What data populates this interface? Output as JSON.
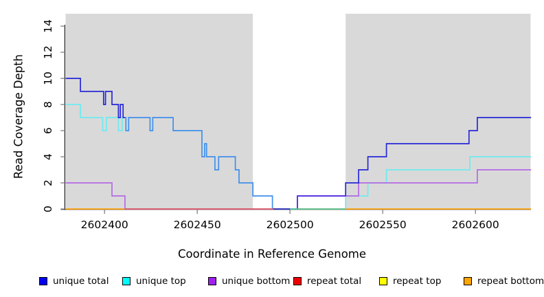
{
  "figure": {
    "title": "",
    "x_axis": {
      "label": "Coordinate in Reference Genome",
      "tick_values": [
        2602400,
        2602450,
        2602500,
        2602550,
        2602600
      ],
      "tick_labels": [
        "2602400",
        "2602450",
        "2602500",
        "2602550",
        "2602600"
      ]
    },
    "y_axis": {
      "label": "Read Coverage Depth",
      "tick_values": [
        0,
        2,
        4,
        6,
        8,
        10,
        12,
        14
      ],
      "tick_labels": [
        "0",
        "2",
        "4",
        "6",
        "8",
        "10",
        "12",
        "14"
      ]
    }
  },
  "legend": {
    "items": [
      {
        "key": "unique-total",
        "label": "unique total",
        "color": "#0000EE"
      },
      {
        "key": "unique-top",
        "label": "unique top",
        "color": "#00FFFF"
      },
      {
        "key": "unique-bottom",
        "label": "unique bottom",
        "color": "#A020F0"
      },
      {
        "key": "repeat-total",
        "label": "repeat total",
        "color": "#EE0000"
      },
      {
        "key": "repeat-top",
        "label": "repeat top",
        "color": "#FFFF00"
      },
      {
        "key": "repeat-bottom",
        "label": "repeat bottom",
        "color": "#FFA500"
      }
    ]
  },
  "chart_data": {
    "type": "line",
    "title": "",
    "xlabel": "Coordinate in Reference Genome",
    "ylabel": "Read Coverage Depth",
    "xlim": [
      2602379,
      2602630
    ],
    "ylim": [
      0,
      15
    ],
    "step_format": "each step is [genome_coordinate, depth]; depth holds until next breakpoint",
    "highlight_region": {
      "x0": 2602480,
      "x1": 2602530,
      "note": "white band over gray plot background"
    },
    "series": [
      {
        "name": "unique total",
        "end": 2602630,
        "steps": [
          [
            2602379,
            10
          ],
          [
            2602387,
            9
          ],
          [
            2602399.5,
            8
          ],
          [
            2602400.5,
            9
          ],
          [
            2602404,
            8
          ],
          [
            2602407.5,
            7
          ],
          [
            2602408.5,
            8
          ],
          [
            2602410,
            7
          ],
          [
            2602411.5,
            6
          ],
          [
            2602413,
            7
          ],
          [
            2602424.5,
            6
          ],
          [
            2602426,
            7
          ],
          [
            2602437,
            6
          ],
          [
            2602452.5,
            4
          ],
          [
            2602454,
            5
          ],
          [
            2602455,
            4
          ],
          [
            2602459.5,
            3
          ],
          [
            2602461.5,
            4
          ],
          [
            2602470.5,
            3
          ],
          [
            2602472.5,
            2
          ],
          [
            2602480,
            1
          ],
          [
            2602490.5,
            0
          ],
          [
            2602504,
            1
          ],
          [
            2602530,
            2
          ],
          [
            2602537,
            3
          ],
          [
            2602542,
            4
          ],
          [
            2602552,
            5
          ],
          [
            2602596.5,
            6
          ],
          [
            2602601,
            7
          ]
        ]
      },
      {
        "name": "unique top",
        "end": 2602630,
        "steps": [
          [
            2602379,
            8
          ],
          [
            2602387,
            7
          ],
          [
            2602399,
            6
          ],
          [
            2602401,
            7
          ],
          [
            2602407.5,
            6
          ],
          [
            2602409.5,
            7
          ],
          [
            2602411.5,
            6
          ],
          [
            2602413,
            7
          ],
          [
            2602424.5,
            6
          ],
          [
            2602426,
            7
          ],
          [
            2602437,
            6
          ],
          [
            2602452.5,
            4
          ],
          [
            2602454,
            5
          ],
          [
            2602455,
            4
          ],
          [
            2602459.5,
            3
          ],
          [
            2602461.5,
            4
          ],
          [
            2602470.5,
            3
          ],
          [
            2602472.5,
            2
          ],
          [
            2602480,
            1
          ],
          [
            2602490.5,
            0
          ],
          [
            2602530,
            1
          ],
          [
            2602542,
            2
          ],
          [
            2602552,
            3
          ],
          [
            2602597,
            4
          ]
        ]
      },
      {
        "name": "unique bottom",
        "end": 2602630,
        "steps": [
          [
            2602379,
            2
          ],
          [
            2602404,
            1
          ],
          [
            2602411,
            0
          ],
          [
            2602504,
            1
          ],
          [
            2602537,
            2
          ],
          [
            2602601,
            3
          ]
        ]
      },
      {
        "name": "repeat total",
        "end": 2602630,
        "steps": [
          [
            2602379,
            0
          ]
        ]
      },
      {
        "name": "repeat top",
        "end": 2602630,
        "steps": [
          [
            2602379,
            0
          ]
        ]
      },
      {
        "name": "repeat bottom",
        "end": 2602630,
        "steps": [
          [
            2602379,
            0
          ]
        ]
      }
    ]
  },
  "render": {
    "plot_bg": "#D9D9D9",
    "white_band": [
      2602480,
      2602530
    ],
    "axis_color": "#2B2B2B",
    "tick_color": "#808080",
    "segments": [
      {
        "name": "baseline-orange",
        "color": "#FFA008",
        "end": 2602630,
        "steps": [
          [
            2602379,
            0
          ]
        ]
      },
      {
        "name": "unique-top-left",
        "color": "#6FEAEE",
        "end": 2602411,
        "steps": [
          [
            2602379,
            8
          ],
          [
            2602387,
            7
          ],
          [
            2602399,
            6
          ],
          [
            2602401,
            7
          ],
          [
            2602407.5,
            6
          ],
          [
            2602409.5,
            7
          ]
        ]
      },
      {
        "name": "unique-top-right",
        "color": "#6FEAEE",
        "end": 2602630,
        "steps": [
          [
            2602530,
            0
          ],
          [
            2602530,
            1
          ],
          [
            2602542,
            2
          ],
          [
            2602552,
            3
          ],
          [
            2602597,
            4
          ]
        ]
      },
      {
        "name": "unique-bottom-left",
        "color": "#B469E4",
        "end": 2602411,
        "steps": [
          [
            2602379,
            2
          ],
          [
            2602404,
            1
          ],
          [
            2602411,
            0
          ]
        ]
      },
      {
        "name": "unique-bottom-right",
        "color": "#B469E4",
        "end": 2602630,
        "steps": [
          [
            2602504,
            0
          ],
          [
            2602504,
            1
          ],
          [
            2602537,
            2
          ],
          [
            2602601,
            3
          ]
        ]
      },
      {
        "name": "unique-total-dark-left",
        "color": "#2727D8",
        "end": 2602411,
        "steps": [
          [
            2602379,
            10
          ],
          [
            2602387,
            9
          ],
          [
            2602399.5,
            8
          ],
          [
            2602400.5,
            9
          ],
          [
            2602404,
            8
          ],
          [
            2602407.5,
            7
          ],
          [
            2602408.5,
            8
          ],
          [
            2602410,
            7
          ]
        ]
      },
      {
        "name": "unique-total-over-cyan",
        "color": "#3E8FEC",
        "end": 2602504,
        "steps": [
          [
            2602411,
            7
          ],
          [
            2602411.5,
            6
          ],
          [
            2602413,
            7
          ],
          [
            2602424.5,
            6
          ],
          [
            2602426,
            7
          ],
          [
            2602437,
            6
          ],
          [
            2602452.5,
            4
          ],
          [
            2602454,
            5
          ],
          [
            2602455,
            4
          ],
          [
            2602459.5,
            3
          ],
          [
            2602461.5,
            4
          ],
          [
            2602470.5,
            3
          ],
          [
            2602472.5,
            2
          ],
          [
            2602480,
            1
          ],
          [
            2602490.5,
            0
          ]
        ]
      },
      {
        "name": "unique-total-over-purple",
        "color": "#4C2BE2",
        "end": 2602530,
        "steps": [
          [
            2602504,
            0
          ],
          [
            2602504,
            1
          ]
        ]
      },
      {
        "name": "unique-total-dark-right",
        "color": "#2727D8",
        "end": 2602630,
        "steps": [
          [
            2602530,
            1
          ],
          [
            2602530,
            2
          ],
          [
            2602537,
            3
          ],
          [
            2602542,
            4
          ],
          [
            2602552,
            5
          ],
          [
            2602596.5,
            6
          ],
          [
            2602601,
            7
          ]
        ]
      },
      {
        "name": "baseline-pink",
        "color": "#D9537A",
        "end": 2602491,
        "steps": [
          [
            2602411,
            0
          ]
        ]
      },
      {
        "name": "baseline-navy",
        "color": "#2B2BB8",
        "end": 2602500,
        "steps": [
          [
            2602491,
            0
          ]
        ]
      },
      {
        "name": "baseline-teal",
        "color": "#4FC49A",
        "end": 2602530,
        "steps": [
          [
            2602500,
            0
          ]
        ]
      }
    ]
  }
}
